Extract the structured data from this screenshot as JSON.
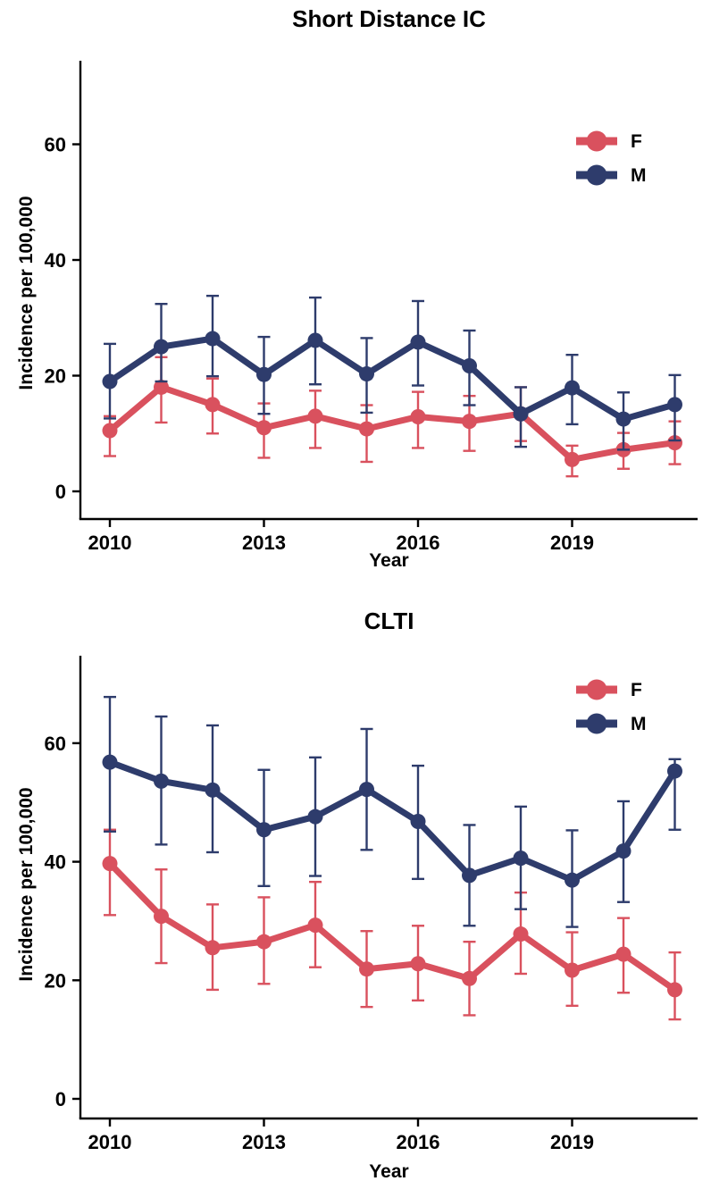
{
  "colors": {
    "female": "#d9515e",
    "male": "#2e3c6c",
    "axis": "#000000",
    "background": "#ffffff"
  },
  "chart_data": [
    {
      "type": "line",
      "title": "Short Distance IC",
      "xlabel": "Year",
      "ylabel": "Incidence per 100,000",
      "x": [
        2010,
        2011,
        2012,
        2013,
        2014,
        2015,
        2016,
        2017,
        2018,
        2019,
        2020,
        2021
      ],
      "x_ticks": [
        2010,
        2013,
        2016,
        2019
      ],
      "y_ticks": [
        0,
        20,
        40,
        60
      ],
      "ylim": [
        0,
        74
      ],
      "grid": false,
      "legend_position": "top-right",
      "error_bars": true,
      "series": [
        {
          "name": "F",
          "color": "#d9515e",
          "values": [
            10.5,
            18,
            15,
            11,
            13,
            10.8,
            12.9,
            12.1,
            13.4,
            5.5,
            7.2,
            8.4
          ],
          "ci_low": [
            6.1,
            11.9,
            10.0,
            5.8,
            7.5,
            5.1,
            7.5,
            7.0,
            8.7,
            2.6,
            3.9,
            4.7
          ],
          "ci_high": [
            13.0,
            23.2,
            19.5,
            15.2,
            17.4,
            14.9,
            17.2,
            16.5,
            18.0,
            7.9,
            10.1,
            12.1
          ]
        },
        {
          "name": "M",
          "color": "#2e3c6c",
          "values": [
            19,
            25,
            26.4,
            20.2,
            26.1,
            20.3,
            25.8,
            21.7,
            13.4,
            17.9,
            12.5,
            15
          ],
          "ci_low": [
            12.6,
            19.0,
            19.9,
            13.4,
            18.5,
            13.6,
            18.3,
            14.9,
            7.7,
            11.6,
            7.2,
            8.8
          ],
          "ci_high": [
            25.5,
            32.4,
            33.8,
            26.7,
            33.5,
            26.5,
            32.9,
            27.8,
            18.0,
            23.6,
            17.1,
            20.1
          ]
        }
      ]
    },
    {
      "type": "line",
      "title": "CLTI",
      "xlabel": "Year",
      "ylabel": "Incidence per 100,000",
      "x": [
        2010,
        2011,
        2012,
        2013,
        2014,
        2015,
        2016,
        2017,
        2018,
        2019,
        2020,
        2021
      ],
      "x_ticks": [
        2010,
        2013,
        2016,
        2019
      ],
      "y_ticks": [
        0,
        20,
        40,
        60
      ],
      "ylim": [
        0,
        75
      ],
      "grid": false,
      "legend_position": "top-right",
      "error_bars": true,
      "series": [
        {
          "name": "F",
          "color": "#d9515e",
          "values": [
            39.7,
            30.8,
            25.5,
            26.5,
            29.3,
            21.9,
            22.8,
            20.3,
            27.8,
            21.7,
            24.4,
            18.4
          ],
          "ci_low": [
            31.0,
            22.9,
            18.4,
            19.4,
            22.2,
            15.5,
            16.6,
            14.1,
            21.1,
            15.7,
            17.9,
            13.4
          ],
          "ci_high": [
            45.4,
            38.7,
            32.8,
            34.0,
            36.6,
            28.3,
            29.2,
            26.5,
            34.8,
            28.1,
            30.5,
            24.7
          ]
        },
        {
          "name": "M",
          "color": "#2e3c6c",
          "values": [
            56.8,
            53.6,
            52.1,
            45.4,
            47.6,
            52.2,
            46.8,
            37.7,
            40.6,
            36.9,
            41.8,
            55.3
          ],
          "ci_low": [
            45.1,
            42.9,
            41.6,
            35.9,
            37.6,
            42.0,
            37.1,
            29.2,
            32.0,
            29.0,
            33.2,
            45.4
          ],
          "ci_high": [
            67.8,
            64.5,
            63.0,
            55.5,
            57.6,
            62.4,
            56.2,
            46.2,
            49.3,
            45.3,
            50.2,
            57.3
          ]
        }
      ]
    }
  ]
}
